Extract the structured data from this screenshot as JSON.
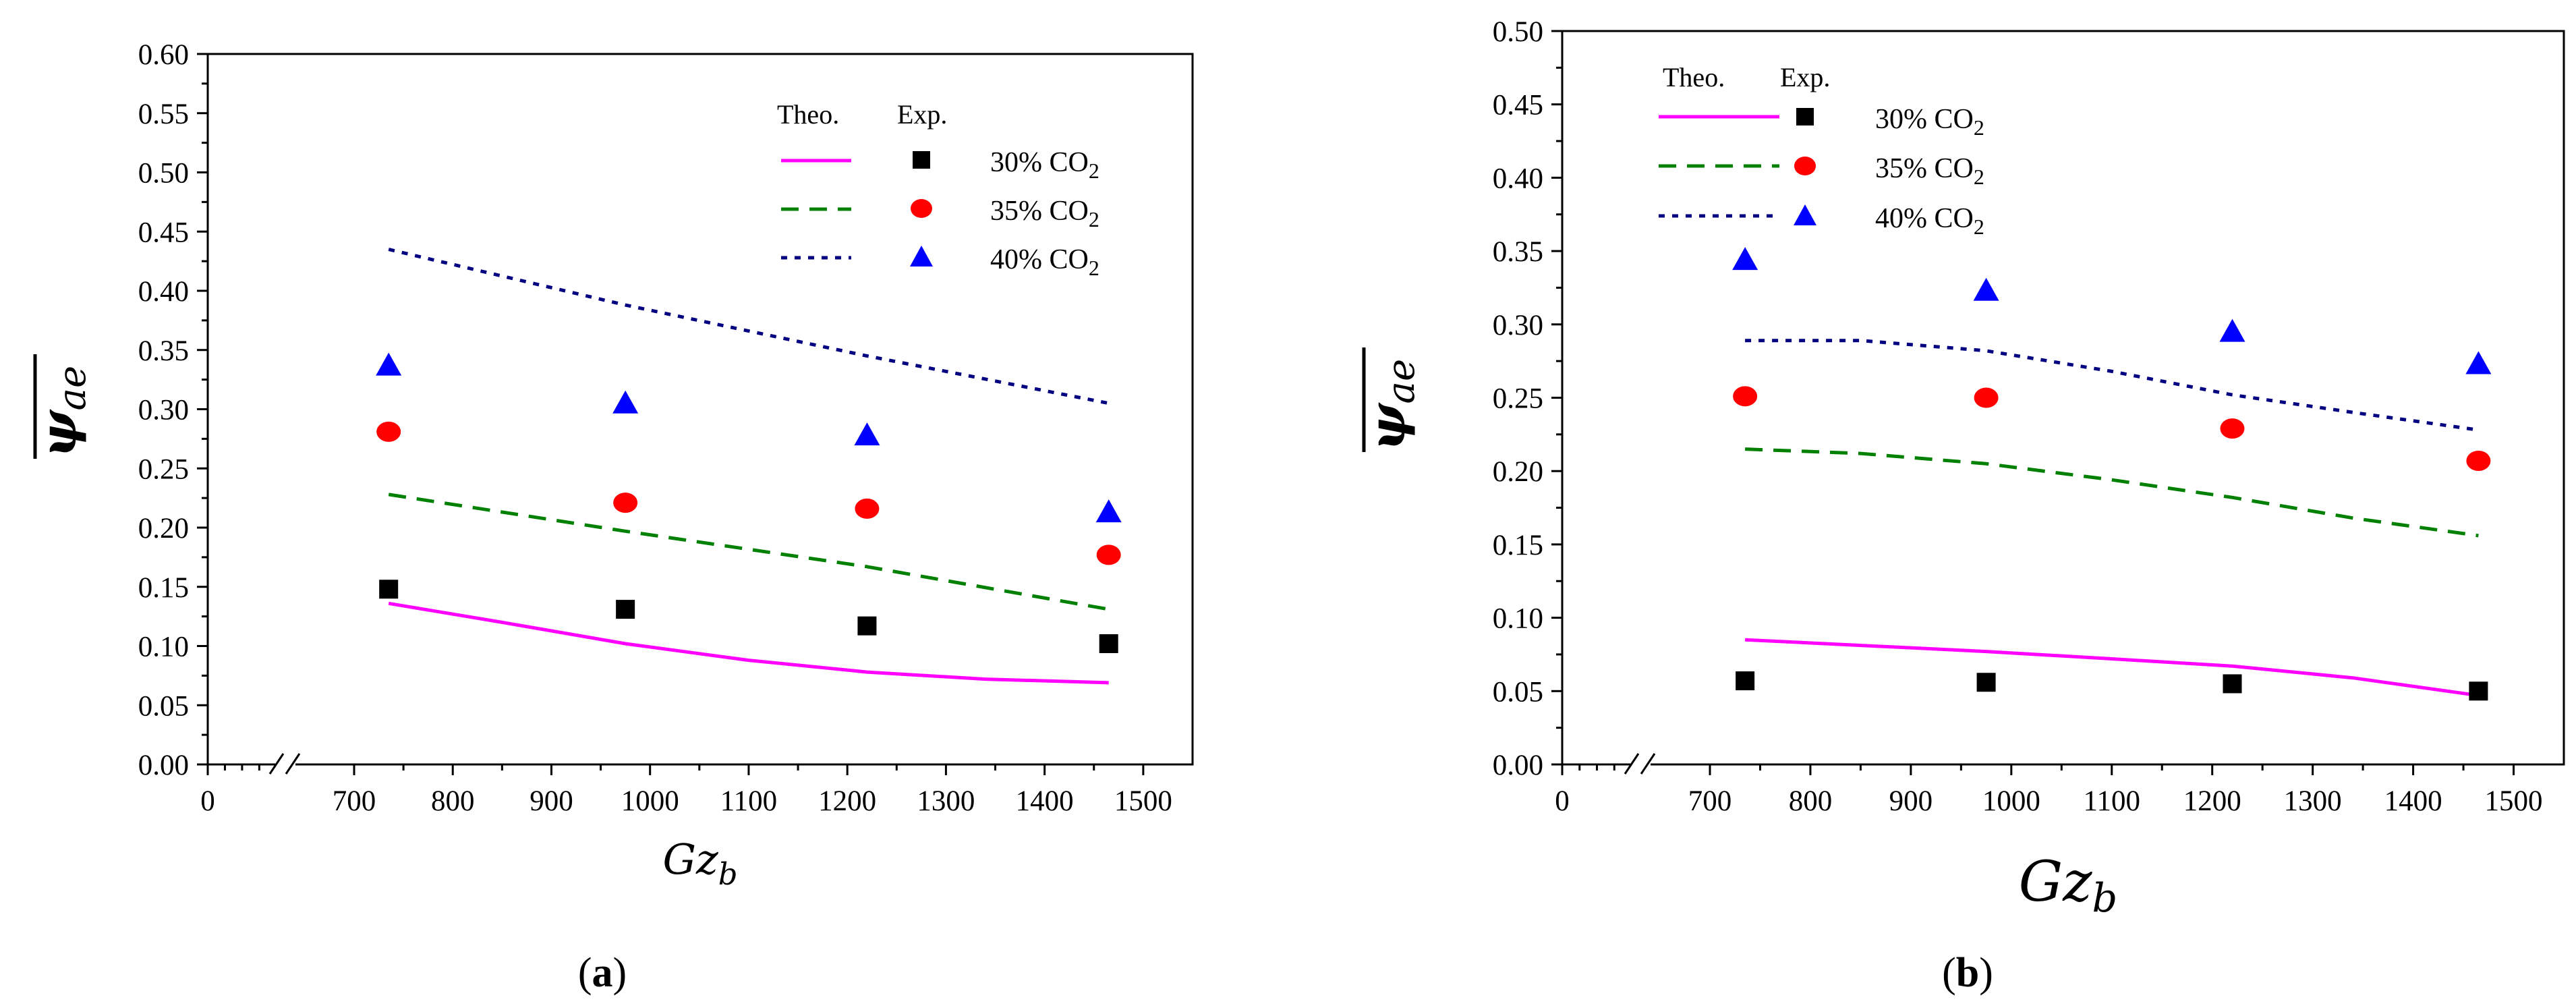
{
  "colors": {
    "co2_30": "#ff00ff",
    "co2_35": "#008000",
    "co2_40": "#000080",
    "marker_30": "#000000",
    "marker_35": "#ff0000",
    "marker_40": "#0000ff"
  },
  "chart_data": [
    {
      "type": "line+scatter",
      "panel_label": "a",
      "xlabel": "Gz",
      "xlabel_sub": "b",
      "ylabel": "ψ",
      "ylabel_sub": "ae",
      "xlim": [
        0,
        1550
      ],
      "x_break": [
        0,
        700
      ],
      "ylim": [
        0,
        0.6
      ],
      "x_ticks": [
        "0",
        "700",
        "800",
        "900",
        "1000",
        "1100",
        "1200",
        "1300",
        "1400",
        "1500"
      ],
      "y_ticks": [
        "0.00",
        "0.05",
        "0.10",
        "0.15",
        "0.20",
        "0.25",
        "0.30",
        "0.35",
        "0.40",
        "0.45",
        "0.50",
        "0.55",
        "0.60"
      ],
      "legend": {
        "position": "top-right",
        "theo_header": "Theo.",
        "exp_header": "Exp."
      },
      "series": [
        {
          "name": "30% CO",
          "sub": "2",
          "key": "co2_30",
          "line_style": "solid",
          "marker": "square",
          "theo_x": [
            735,
            850,
            975,
            1100,
            1220,
            1340,
            1465
          ],
          "theo_y": [
            0.136,
            0.12,
            0.102,
            0.088,
            0.078,
            0.072,
            0.069
          ],
          "exp_x": [
            735,
            975,
            1220,
            1465
          ],
          "exp_y": [
            0.148,
            0.131,
            0.117,
            0.102
          ]
        },
        {
          "name": "35% CO",
          "sub": "2",
          "key": "co2_35",
          "line_style": "dash",
          "marker": "circle",
          "theo_x": [
            735,
            975,
            1220,
            1465
          ],
          "theo_y": [
            0.228,
            0.197,
            0.167,
            0.131
          ],
          "exp_x": [
            735,
            975,
            1220,
            1465
          ],
          "exp_y": [
            0.281,
            0.221,
            0.216,
            0.177
          ]
        },
        {
          "name": "40% CO",
          "sub": "2",
          "key": "co2_40",
          "line_style": "dot",
          "marker": "triangle",
          "theo_x": [
            735,
            975,
            1220,
            1465
          ],
          "theo_y": [
            0.435,
            0.388,
            0.345,
            0.305
          ],
          "exp_x": [
            735,
            975,
            1220,
            1465
          ],
          "exp_y": [
            0.337,
            0.305,
            0.278,
            0.213
          ]
        }
      ]
    },
    {
      "type": "line+scatter",
      "panel_label": "b",
      "xlabel": "Gz",
      "xlabel_sub": "b",
      "ylabel": "ψ",
      "ylabel_sub": "ae",
      "xlim": [
        0,
        1550
      ],
      "x_break": [
        0,
        700
      ],
      "ylim": [
        0,
        0.5
      ],
      "x_ticks": [
        "0",
        "700",
        "800",
        "900",
        "1000",
        "1100",
        "1200",
        "1300",
        "1400",
        "1500"
      ],
      "y_ticks": [
        "0.00",
        "0.05",
        "0.10",
        "0.15",
        "0.20",
        "0.25",
        "0.30",
        "0.35",
        "0.40",
        "0.45",
        "0.50"
      ],
      "legend": {
        "position": "top-left",
        "theo_header": "Theo.",
        "exp_header": "Exp."
      },
      "series": [
        {
          "name": "30% CO",
          "sub": "2",
          "key": "co2_30",
          "line_style": "solid",
          "marker": "square",
          "theo_x": [
            735,
            975,
            1100,
            1220,
            1340,
            1465
          ],
          "theo_y": [
            0.085,
            0.077,
            0.072,
            0.067,
            0.059,
            0.047
          ],
          "exp_x": [
            735,
            975,
            1220,
            1465
          ],
          "exp_y": [
            0.057,
            0.056,
            0.055,
            0.05
          ]
        },
        {
          "name": "35% CO",
          "sub": "2",
          "key": "co2_35",
          "line_style": "dash",
          "marker": "circle",
          "theo_x": [
            735,
            850,
            975,
            1100,
            1220,
            1340,
            1465
          ],
          "theo_y": [
            0.215,
            0.212,
            0.205,
            0.194,
            0.182,
            0.168,
            0.156
          ],
          "exp_x": [
            735,
            975,
            1220,
            1465
          ],
          "exp_y": [
            0.251,
            0.25,
            0.229,
            0.207
          ]
        },
        {
          "name": "40% CO",
          "sub": "2",
          "key": "co2_40",
          "line_style": "dot",
          "marker": "triangle",
          "theo_x": [
            735,
            850,
            975,
            1100,
            1220,
            1340,
            1465
          ],
          "theo_y": [
            0.289,
            0.289,
            0.282,
            0.268,
            0.252,
            0.24,
            0.228
          ],
          "exp_x": [
            735,
            975,
            1220,
            1465
          ],
          "exp_y": [
            0.344,
            0.323,
            0.295,
            0.273
          ]
        }
      ]
    }
  ]
}
